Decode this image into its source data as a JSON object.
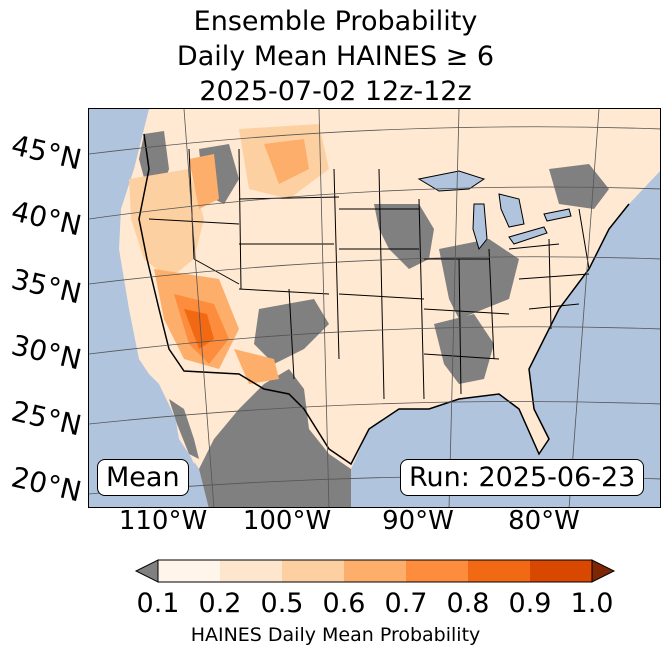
{
  "title": {
    "line1": "Ensemble Probability",
    "line2": "Daily Mean HAINES ≥ 6",
    "line3": "2025-07-02 12z-12z"
  },
  "map": {
    "ocean_color": "#b0c4de",
    "land_base_color": "#ffe9d2",
    "missing_color": "#808080",
    "lat_labels": [
      "45°N",
      "40°N",
      "35°N",
      "30°N",
      "25°N",
      "20°N"
    ],
    "lon_labels": [
      "110°W",
      "100°W",
      "90°W",
      "80°W"
    ],
    "mean_box": "Mean",
    "run_box": "Run: 2025-06-23"
  },
  "colorbar": {
    "ticks": [
      "0.1",
      "0.2",
      "0.5",
      "0.6",
      "0.7",
      "0.8",
      "0.9",
      "1.0"
    ],
    "colors": [
      "#fff5eb",
      "#fee6ce",
      "#fdd0a2",
      "#fdae6b",
      "#fd8d3c",
      "#f16913",
      "#d94801",
      "#a63603"
    ],
    "under_color": "#808080",
    "over_color": "#7f2704",
    "label": "HAINES Daily Mean Probability"
  }
}
